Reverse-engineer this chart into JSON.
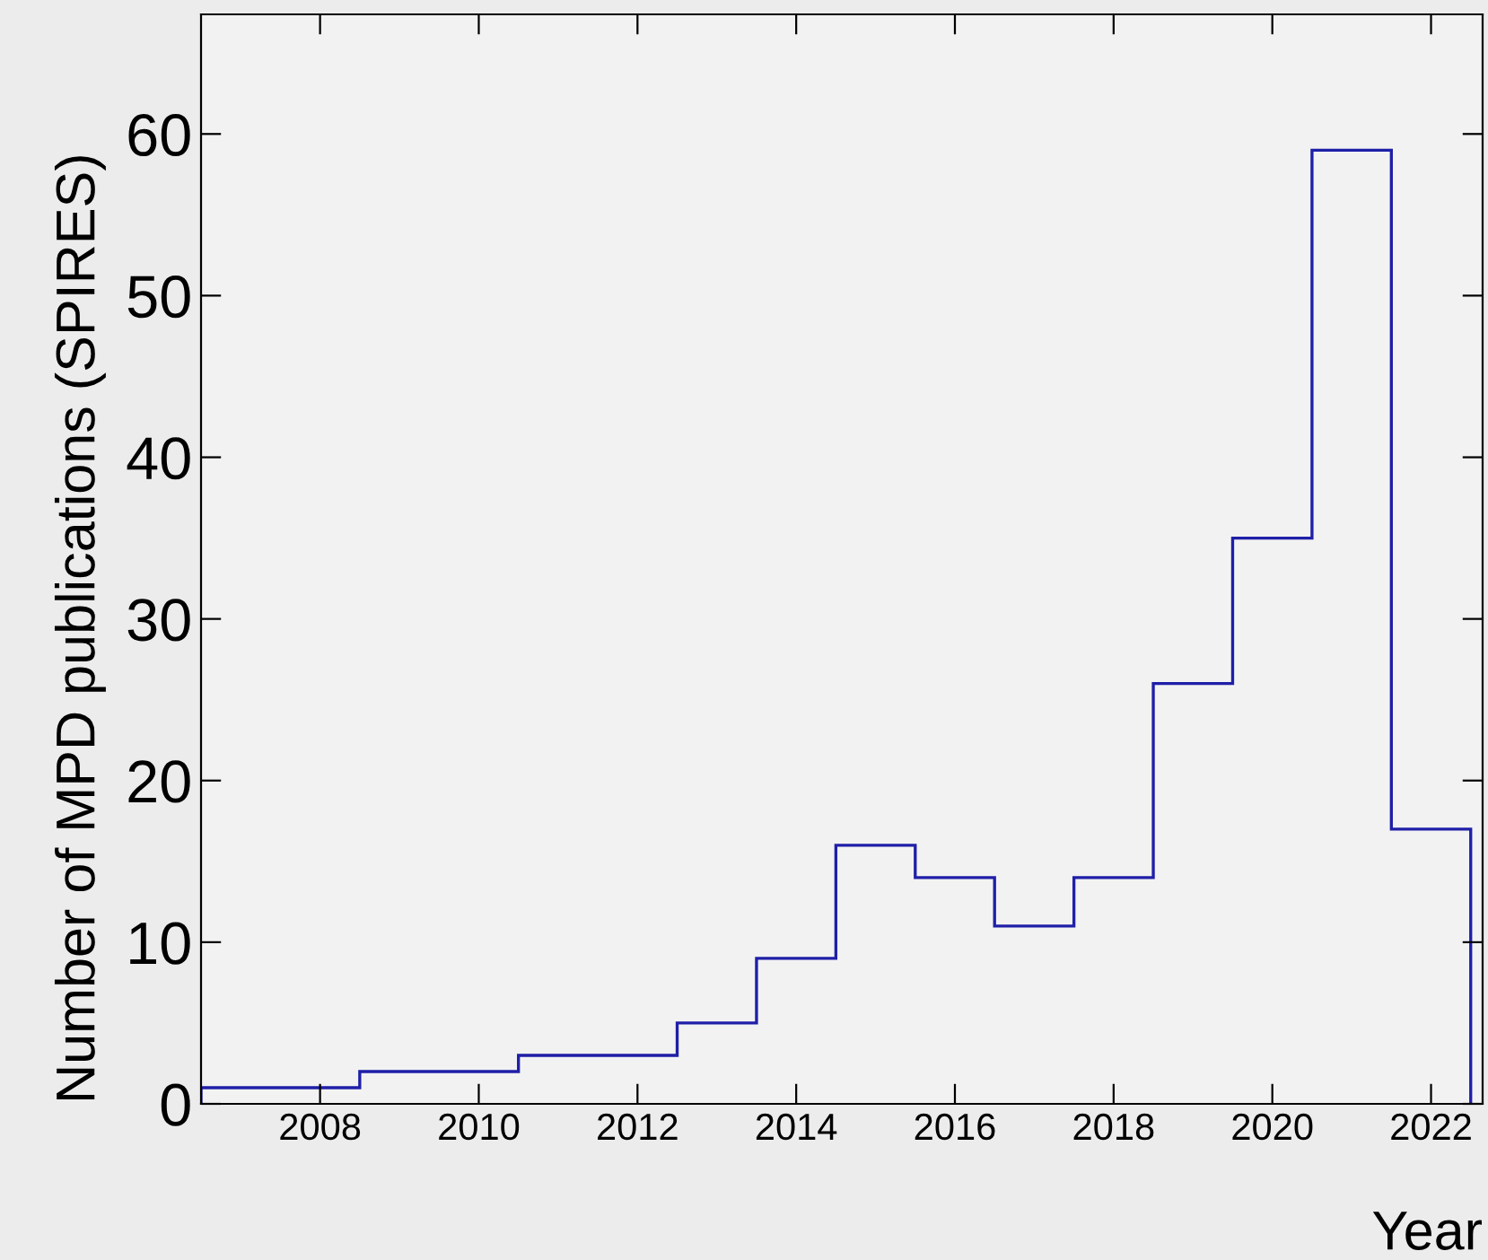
{
  "chart_data": {
    "type": "histogram",
    "xlabel": "Year",
    "ylabel": "Number of MPD publications (SPIRES)",
    "bins": [
      2006.5,
      2007.5,
      2008.5,
      2009.5,
      2010.5,
      2011.5,
      2012.5,
      2013.5,
      2014.5,
      2015.5,
      2016.5,
      2017.5,
      2018.5,
      2019.5,
      2020.5,
      2021.5,
      2022.5
    ],
    "values": [
      1,
      1,
      2,
      2,
      3,
      3,
      5,
      9,
      16,
      14,
      11,
      14,
      26,
      35,
      59,
      17
    ],
    "color": "#1f1fa8",
    "xlim": [
      2006.5,
      2022.65
    ],
    "ylim": [
      0,
      67.4
    ],
    "xticks": [
      2008,
      2010,
      2012,
      2014,
      2016,
      2018,
      2020,
      2022
    ],
    "yticks": [
      0,
      10,
      20,
      30,
      40,
      50,
      60
    ],
    "grid": false
  }
}
